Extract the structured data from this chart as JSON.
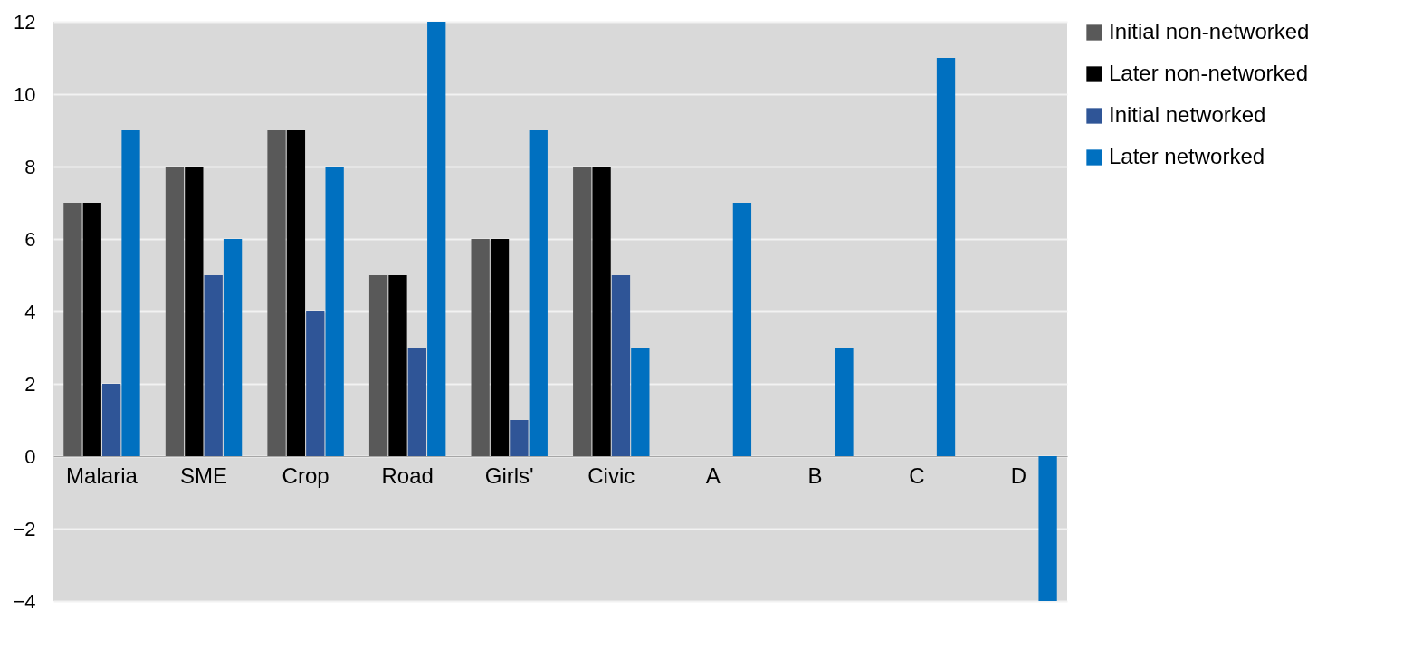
{
  "chart_data": {
    "type": "bar",
    "categories": [
      "Malaria",
      "SME",
      "Crop",
      "Road",
      "Girls'",
      "Civic",
      "A",
      "B",
      "C",
      "D"
    ],
    "series": [
      {
        "name": "Initial non-networked",
        "color": "#595959",
        "values": [
          7,
          8,
          9,
          5,
          6,
          8,
          null,
          null,
          null,
          null
        ]
      },
      {
        "name": "Later non-networked",
        "color": "#000000",
        "values": [
          7,
          8,
          9,
          5,
          6,
          8,
          null,
          null,
          null,
          null
        ]
      },
      {
        "name": "Initial networked",
        "color": "#2f5597",
        "values": [
          2,
          5,
          4,
          3,
          1,
          5,
          null,
          null,
          null,
          null
        ]
      },
      {
        "name": "Later  networked",
        "color": "#0070c0",
        "values": [
          9,
          6,
          8,
          12,
          9,
          3,
          7,
          3,
          11,
          -4
        ]
      }
    ],
    "ylim": [
      -4,
      12
    ],
    "yticks": [
      -4,
      -2,
      0,
      2,
      4,
      6,
      8,
      10,
      12
    ],
    "grid": "y",
    "legend": "right"
  }
}
